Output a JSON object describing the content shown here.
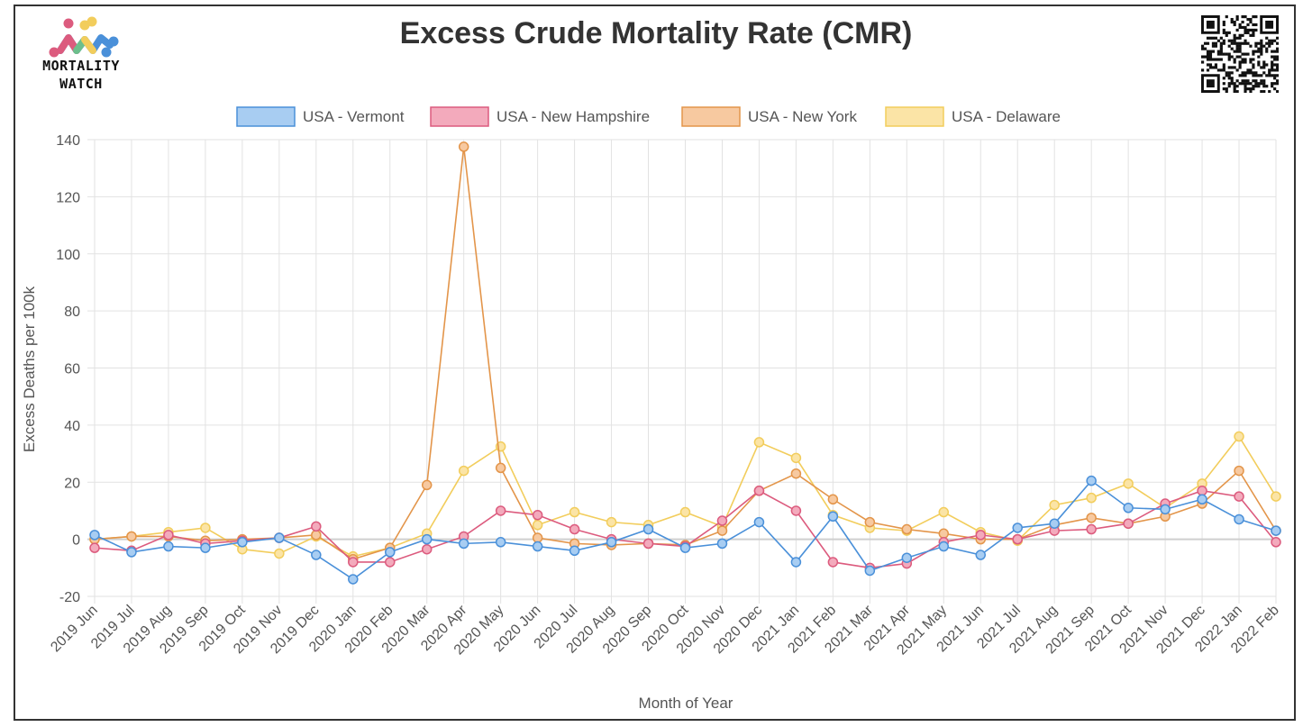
{
  "header": {
    "title": "Excess Crude Mortality Rate (CMR)",
    "logo_line1": "MORTALITY",
    "logo_line2": "WATCH"
  },
  "chart_data": {
    "type": "line",
    "title": "Excess Crude Mortality Rate (CMR)",
    "xlabel": "Month of Year",
    "ylabel": "Excess Deaths per 100k",
    "ylim": [
      -20,
      140
    ],
    "yticks": [
      140,
      120,
      100,
      80,
      60,
      40,
      20,
      0,
      -20
    ],
    "legend_position": "top",
    "grid": true,
    "categories": [
      "2019 Jun",
      "2019 Jul",
      "2019 Aug",
      "2019 Sep",
      "2019 Oct",
      "2019 Nov",
      "2019 Dec",
      "2020 Jan",
      "2020 Feb",
      "2020 Mar",
      "2020 Apr",
      "2020 May",
      "2020 Jun",
      "2020 Jul",
      "2020 Aug",
      "2020 Sep",
      "2020 Oct",
      "2020 Nov",
      "2020 Dec",
      "2021 Jan",
      "2021 Feb",
      "2021 Mar",
      "2021 Apr",
      "2021 May",
      "2021 Jun",
      "2021 Jul",
      "2021 Aug",
      "2021 Sep",
      "2021 Oct",
      "2021 Nov",
      "2021 Dec",
      "2022 Jan",
      "2022 Feb"
    ],
    "series": [
      {
        "name": "USA - Vermont",
        "color": "#4a90d9",
        "fill": "#a8cdf2",
        "values": [
          1.5,
          -4.5,
          -2.5,
          -3,
          -1,
          0.5,
          -5.5,
          -14,
          -4.5,
          0,
          -1.5,
          -1,
          -2.5,
          -4,
          -1,
          3.5,
          -3,
          -1.5,
          6,
          -8,
          8,
          -11,
          -6.5,
          -2.5,
          -5.5,
          4,
          5.5,
          20.5,
          11,
          10.5,
          14,
          7,
          3
        ]
      },
      {
        "name": "USA - New Hampshire",
        "color": "#dc5b7e",
        "fill": "#f3aabc",
        "values": [
          -3,
          -4,
          1.5,
          -1.5,
          -0.5,
          0.5,
          4.5,
          -8,
          -8,
          -3.5,
          1,
          10,
          8.5,
          3.5,
          0,
          -1.5,
          -2.5,
          6.5,
          17,
          10,
          -8,
          -10,
          -8.5,
          -1,
          1.5,
          0,
          3,
          3.5,
          5.5,
          12.5,
          17,
          15,
          -1
        ]
      },
      {
        "name": "USA - New York",
        "color": "#e3954a",
        "fill": "#f7c9a0",
        "values": [
          0,
          1,
          1,
          -0.5,
          0,
          0.5,
          1.5,
          -7,
          -3,
          19,
          137.5,
          25,
          0.5,
          -1.5,
          -2,
          -1.5,
          -2,
          3,
          17,
          23,
          14,
          6,
          3.5,
          2,
          0,
          0,
          5,
          7.5,
          5.5,
          8,
          12.5,
          24,
          3
        ]
      },
      {
        "name": "USA - Delaware",
        "color": "#f2cd5c",
        "fill": "#fbe4a6",
        "values": [
          0,
          1,
          2.5,
          4,
          -3.5,
          -5,
          1,
          -6,
          -3,
          2,
          24,
          32.5,
          5,
          9.5,
          6,
          5,
          9.5,
          4.5,
          34,
          28.5,
          8.5,
          4,
          3,
          9.5,
          2.5,
          -0.5,
          12,
          14.5,
          19.5,
          11,
          19.5,
          36,
          15
        ]
      }
    ]
  }
}
